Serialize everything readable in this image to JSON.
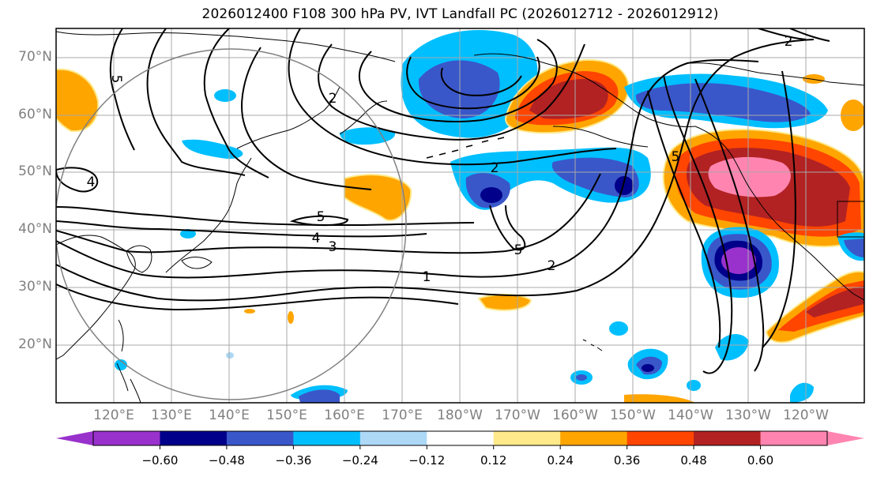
{
  "title": "2026012400 F108 300 hPa PV, IVT Landfall PC (2026012712 - 2026012912)",
  "lat_labels": [
    "70°N",
    "60°N",
    "50°N",
    "40°N",
    "30°N",
    "20°N"
  ],
  "lon_labels": [
    "120°E",
    "130°E",
    "140°E",
    "150°E",
    "160°E",
    "170°E",
    "180°W",
    "170°W",
    "160°W",
    "150°W",
    "140°W",
    "130°W",
    "120°W"
  ],
  "colorbar": {
    "ticks": [
      "−0.60",
      "−0.48",
      "−0.36",
      "−0.24",
      "−0.12",
      "0.12",
      "0.24",
      "0.36",
      "0.48",
      "0.60"
    ],
    "colors": [
      "#9932CC",
      "#00008B",
      "#3A57C9",
      "#00BFFF",
      "#ADD8F6",
      "#FFFFFF",
      "#FFE98A",
      "#FFA500",
      "#FF4500",
      "#B22222",
      "#FF85B0"
    ]
  },
  "contour_labels": [
    "5",
    "2",
    "4",
    "2",
    "5",
    "4",
    "3",
    "1",
    "2",
    "5",
    "2",
    "5"
  ]
}
